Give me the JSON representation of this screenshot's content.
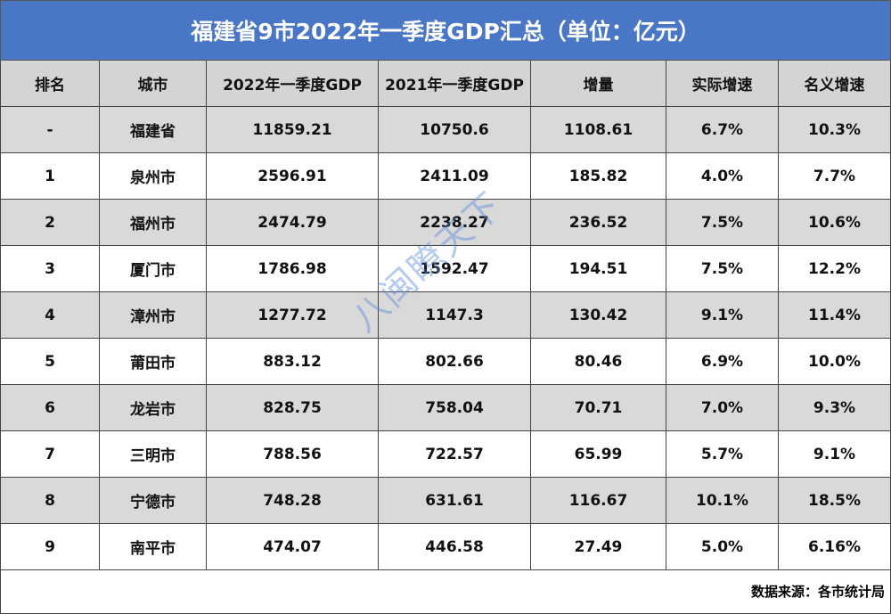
{
  "header": {
    "title": "福建省9市2022年一季度GDP汇总（单位：亿元）"
  },
  "table": {
    "columns": [
      "排名",
      "城市",
      "2022年一季度GDP",
      "2021年一季度GDP",
      "增量",
      "实际增速",
      "名义增速"
    ],
    "rows": [
      [
        "-",
        "福建省",
        "11859.21",
        "10750.6",
        "1108.61",
        "6.7%",
        "10.3%"
      ],
      [
        "1",
        "泉州市",
        "2596.91",
        "2411.09",
        "185.82",
        "4.0%",
        "7.7%"
      ],
      [
        "2",
        "福州市",
        "2474.79",
        "2238.27",
        "236.52",
        "7.5%",
        "10.6%"
      ],
      [
        "3",
        "厦门市",
        "1786.98",
        "1592.47",
        "194.51",
        "7.5%",
        "12.2%"
      ],
      [
        "4",
        "漳州市",
        "1277.72",
        "1147.3",
        "130.42",
        "9.1%",
        "11.4%"
      ],
      [
        "5",
        "莆田市",
        "883.12",
        "802.66",
        "80.46",
        "6.9%",
        "10.0%"
      ],
      [
        "6",
        "龙岩市",
        "828.75",
        "758.04",
        "70.71",
        "7.0%",
        "9.3%"
      ],
      [
        "7",
        "三明市",
        "788.56",
        "722.57",
        "65.99",
        "5.7%",
        "9.1%"
      ],
      [
        "8",
        "宁德市",
        "748.28",
        "631.61",
        "116.67",
        "10.1%",
        "18.5%"
      ],
      [
        "9",
        "南平市",
        "474.07",
        "446.58",
        "27.49",
        "5.0%",
        "6.16%"
      ]
    ]
  },
  "footer": {
    "source": "数据来源：各市统计局"
  },
  "watermark": "八闽瞭天下"
}
